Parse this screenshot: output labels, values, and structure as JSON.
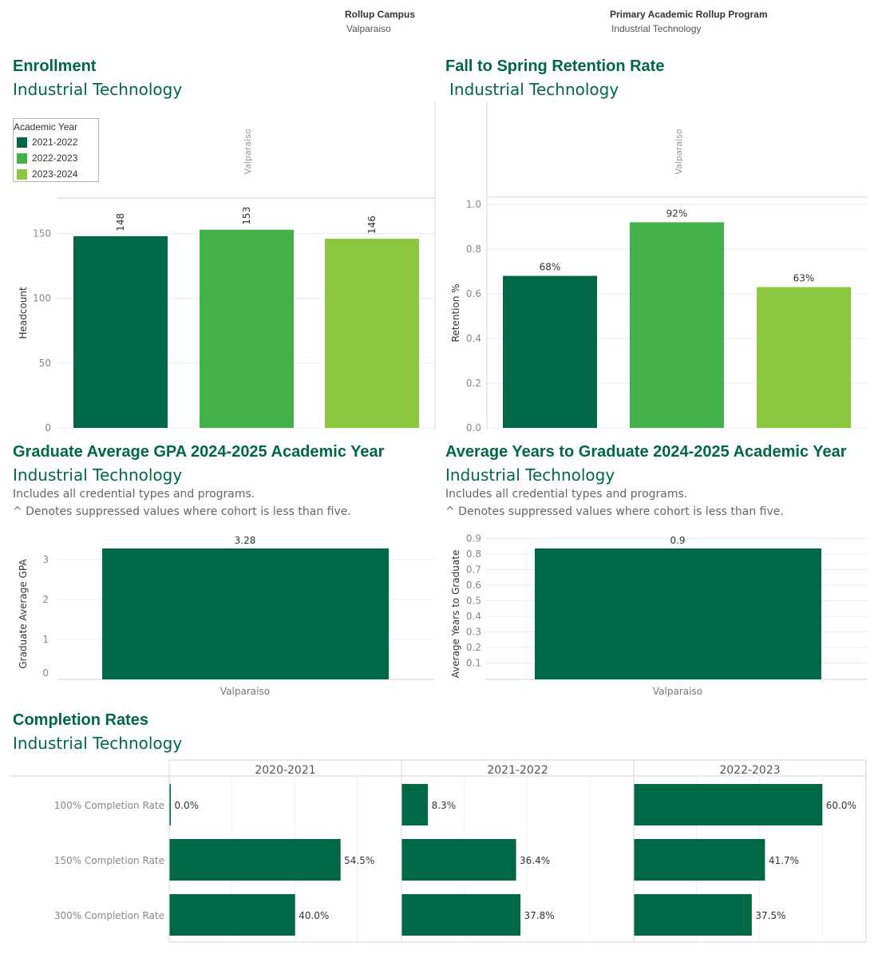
{
  "filters": {
    "campus_label": "Rollup Campus",
    "campus_value": "Valparaiso",
    "program_label": "Primary Academic Rollup Program",
    "program_value": "Industrial Technology"
  },
  "colors": {
    "brand": "#006747",
    "y2021": "#006747",
    "y2022": "#43b049",
    "y2023": "#8dc63f"
  },
  "sections": {
    "enrollment": {
      "title": "Enrollment",
      "subtitle": "Industrial Technology"
    },
    "retention": {
      "title": "Fall to Spring Retention Rate",
      "subtitle": "Industrial Technology"
    },
    "gpa": {
      "title": "Graduate Average GPA 2024-2025 Academic Year",
      "subtitle": "Industrial Technology",
      "note1": "Includes all credential types and programs.",
      "note2": "^ Denotes suppressed values where cohort is less than five."
    },
    "years": {
      "title": "Average Years to Graduate 2024-2025 Academic Year",
      "subtitle": "Industrial Technology",
      "note1": "Includes all credential types and programs.",
      "note2": "^ Denotes suppressed values where cohort is less than five."
    },
    "completion": {
      "title": "Completion Rates",
      "subtitle": "Industrial Technology"
    }
  },
  "legend": {
    "title": "Academic Year",
    "items": [
      "2021-2022",
      "2022-2023",
      "2023-2024"
    ]
  },
  "chart_data": [
    {
      "id": "enrollment",
      "type": "bar",
      "panel": "Valparaiso",
      "categories": [
        "2021-2022",
        "2022-2023",
        "2023-2024"
      ],
      "values": [
        148,
        153,
        146
      ],
      "labels": [
        "148",
        "153",
        "146"
      ],
      "ylabel": "Headcount",
      "ylim": [
        0,
        175
      ],
      "yticks": [
        0,
        50,
        100,
        150
      ],
      "yticklabels": [
        "0",
        "50",
        "100",
        "150"
      ]
    },
    {
      "id": "retention",
      "type": "bar",
      "panel": "Valparaiso",
      "categories": [
        "2021-2022",
        "2022-2023",
        "2023-2024"
      ],
      "values": [
        0.68,
        0.92,
        0.63
      ],
      "labels": [
        "68%",
        "92%",
        "63%"
      ],
      "ylabel": "Retention %",
      "ylim": [
        0,
        1.0
      ],
      "yticks": [
        0,
        0.2,
        0.4,
        0.6,
        0.8,
        1.0
      ],
      "yticklabels": [
        "0.0",
        "0.2",
        "0.4",
        "0.6",
        "0.8",
        "1.0"
      ]
    },
    {
      "id": "gpa",
      "type": "bar",
      "categories": [
        "Valparaiso"
      ],
      "values": [
        3.28
      ],
      "labels": [
        "3.28"
      ],
      "ylabel": "Graduate Average GPA",
      "ylim": [
        0,
        3.28
      ],
      "yticks": [
        0,
        1,
        2,
        3
      ],
      "yticklabels": [
        "0",
        "1",
        "2",
        "3"
      ]
    },
    {
      "id": "years",
      "type": "bar",
      "categories": [
        "Valparaiso"
      ],
      "values": [
        0.9
      ],
      "labels": [
        "0.9"
      ],
      "ylabel": "Average Years to Graduate",
      "ylim": [
        0,
        0.9
      ],
      "yticks": [
        0.1,
        0.2,
        0.3,
        0.4,
        0.5,
        0.6,
        0.7,
        0.8,
        0.9
      ],
      "yticklabels": [
        "0.1",
        "0.2",
        "0.3",
        "0.4",
        "0.5",
        "0.6",
        "0.7",
        "0.8",
        "0.9"
      ]
    },
    {
      "id": "completion",
      "type": "bar",
      "orientation": "horizontal",
      "rows": [
        "100% Completion Rate",
        "150% Completion Rate",
        "300% Completion Rate"
      ],
      "columns": [
        "2020-2021",
        "2021-2022",
        "2022-2023"
      ],
      "xlim": [
        0,
        100
      ],
      "values": [
        [
          0.0,
          54.5,
          40.0
        ],
        [
          8.3,
          36.4,
          37.8
        ],
        [
          60.0,
          41.7,
          37.5
        ]
      ],
      "labels": [
        [
          "0.0%",
          "54.5%",
          "40.0%"
        ],
        [
          "8.3%",
          "36.4%",
          "37.8%"
        ],
        [
          "60.0%",
          "41.7%",
          "37.5%"
        ]
      ]
    }
  ]
}
